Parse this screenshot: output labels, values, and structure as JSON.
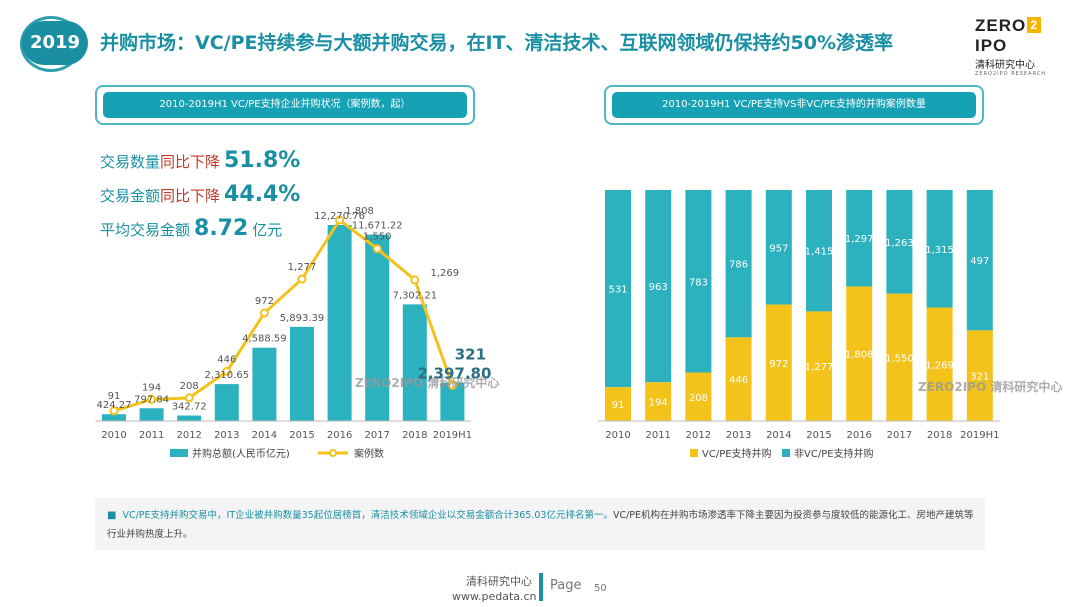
{
  "header": {
    "year_badge": "2019",
    "title": "并购市场：VC/PE持续参与大额并购交易，在IT、清洁技术、互联网领域仍保持约50%渗透率",
    "logo_main_left": "ZERO",
    "logo_box": "2",
    "logo_main_right": "IPO",
    "logo_sub": "清科研究中心",
    "logo_tiny": "ZERO2IPO RESEARCH"
  },
  "left_panel": {
    "title": "2010-2019H1 VC/PE支持企业并购状况（案例数，起）",
    "stats": [
      {
        "label": "交易数量",
        "emph": "同比下降",
        "value": "51.8%",
        "unit": ""
      },
      {
        "label": "交易金额",
        "emph": "同比下降",
        "value": "44.4%",
        "unit": ""
      },
      {
        "label": "平均交易金额",
        "emph": "",
        "value": "8.72",
        "unit": "亿元"
      }
    ],
    "watermark": "ZERO2IPO 清科研究中心"
  },
  "right_panel": {
    "title": "2010-2019H1 VC/PE支持VS非VC/PE支持的并购案例数量",
    "watermark": "ZERO2IPO 清科研究中心"
  },
  "chart_data": [
    {
      "type": "bar+line",
      "title": "2010-2019H1 VC/PE支持企业并购状况（案例数，起）",
      "categories": [
        "2010",
        "2011",
        "2012",
        "2013",
        "2014",
        "2015",
        "2016",
        "2017",
        "2018",
        "2019H1"
      ],
      "series": [
        {
          "name": "并购总额(人民币亿元)",
          "kind": "bar",
          "color": "#2cb1be",
          "values": [
            424.27,
            797.84,
            342.72,
            2310.65,
            4588.59,
            5893.39,
            12270.76,
            11671.22,
            7302.21,
            2397.8
          ],
          "labels": [
            "424.27",
            "797.84",
            "342.72",
            "2,310.65",
            "4,588.59",
            "5,893.39",
            "12,270.76",
            "11,671.22",
            "7,302.21",
            "2,397.80"
          ]
        },
        {
          "name": "案例数",
          "kind": "line",
          "color": "#f3c21b",
          "values": [
            91,
            194,
            208,
            446,
            972,
            1277,
            1808,
            1550,
            1269,
            321
          ],
          "labels": [
            "91",
            "194",
            "208",
            "446",
            "972",
            "1,277",
            "1,808",
            "1,550",
            "1,269",
            "321"
          ]
        }
      ],
      "legend": "bottom"
    },
    {
      "type": "stacked-bar-100",
      "title": "2010-2019H1 VC/PE支持VS非VC/PE支持的并购案例数量",
      "categories": [
        "2010",
        "2011",
        "2012",
        "2013",
        "2014",
        "2015",
        "2016",
        "2017",
        "2018",
        "2019H1"
      ],
      "series": [
        {
          "name": "VC/PE支持并购",
          "color": "#f3c21b",
          "values": [
            91,
            194,
            208,
            446,
            972,
            1277,
            1808,
            1550,
            1269,
            321
          ],
          "labels": [
            "91",
            "194",
            "208",
            "446",
            "972",
            "1,277",
            "1,808",
            "1,550",
            "1,269",
            "321"
          ]
        },
        {
          "name": "非VC/PE支持并购",
          "color": "#2cb1be",
          "values": [
            531,
            963,
            783,
            786,
            957,
            1415,
            1297,
            1263,
            1315,
            497
          ],
          "labels": [
            "531",
            "963",
            "783",
            "786",
            "957",
            "1,415",
            "1,297",
            "1,263",
            "1,315",
            "497"
          ]
        }
      ],
      "legend": "bottom"
    }
  ],
  "note": {
    "bullet": "■",
    "lead": "VC/PE支持并购交易中，IT企业被并购数量35起位居榜首，清洁技术领域企业以交易金额合计365.03亿元排名第一。",
    "rest": "VC/PE机构在并购市场渗透率下降主要因为投资参与度较低的能源化工、房地产建筑等行业并购热度上升。"
  },
  "footer": {
    "org": "清科研究中心",
    "url": "www.pedata.cn",
    "page_label": "Page",
    "page_num": "50"
  },
  "colors": {
    "teal": "#2cb1be",
    "yellow": "#f3c21b",
    "brand": "#1a8fa3"
  }
}
